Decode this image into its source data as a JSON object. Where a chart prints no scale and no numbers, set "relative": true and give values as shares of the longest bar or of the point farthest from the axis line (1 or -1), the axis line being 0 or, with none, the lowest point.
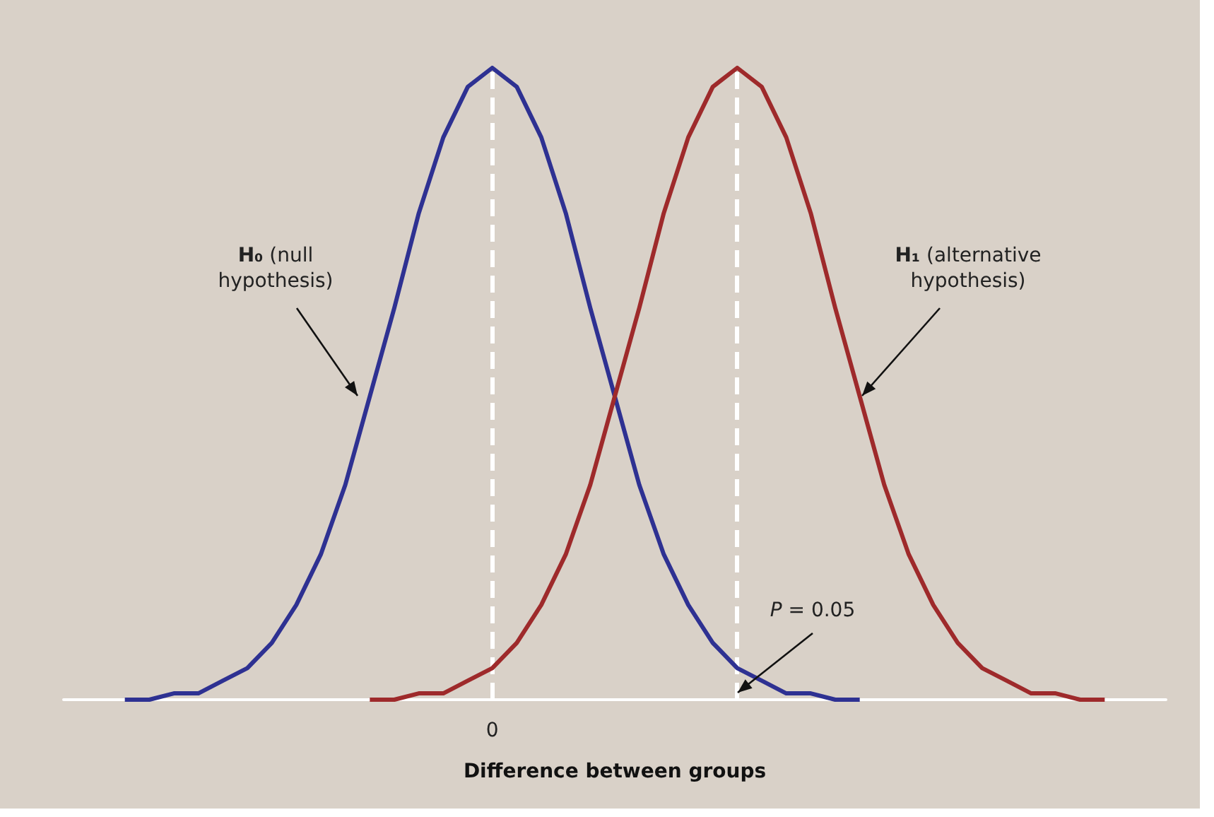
{
  "chart_data": {
    "type": "line",
    "relative": true,
    "xlabel": "Difference between groups",
    "marker": "none",
    "categories": [
      null,
      null,
      null,
      null,
      null,
      null,
      null,
      null,
      null,
      null,
      null,
      null,
      null,
      null,
      null,
      null,
      null,
      null,
      null,
      null,
      null,
      null,
      null,
      null,
      null,
      null,
      null,
      null,
      null,
      null,
      null,
      null,
      null,
      null,
      null,
      null,
      null,
      null,
      null,
      null,
      null,
      null,
      null,
      null,
      null
    ],
    "series": [
      {
        "color": "#2e3192",
        "values": [
          null,
          null,
          0,
          0,
          0.01,
          0.01,
          0.03,
          0.05,
          0.09,
          0.15,
          0.23,
          0.34,
          0.48,
          0.62,
          0.77,
          0.89,
          0.97,
          1,
          0.97,
          0.89,
          0.77,
          0.62,
          0.48,
          0.34,
          0.23,
          0.15,
          0.09,
          0.05,
          0.03,
          0.01,
          0.01,
          0,
          0,
          null,
          null,
          null,
          null,
          null,
          null,
          null,
          null,
          null,
          null,
          null,
          null
        ]
      },
      {
        "color": "#9e2a2b",
        "values": [
          null,
          null,
          null,
          null,
          null,
          null,
          null,
          null,
          null,
          null,
          null,
          null,
          0,
          0,
          0.01,
          0.01,
          0.03,
          0.05,
          0.09,
          0.15,
          0.23,
          0.34,
          0.48,
          0.62,
          0.77,
          0.89,
          0.97,
          1,
          0.97,
          0.89,
          0.77,
          0.62,
          0.48,
          0.34,
          0.23,
          0.15,
          0.09,
          0.05,
          0.03,
          0.01,
          0.01,
          0,
          0,
          null,
          null
        ]
      }
    ],
    "annotations": [
      "H₀ (null hypothesis)",
      "H₁ (alternative hypothesis)",
      "P = 0.05",
      "0"
    ]
  }
}
